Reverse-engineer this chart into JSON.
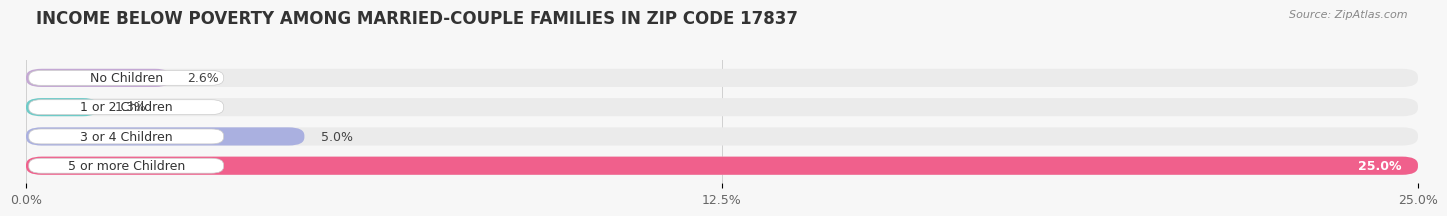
{
  "title": "INCOME BELOW POVERTY AMONG MARRIED-COUPLE FAMILIES IN ZIP CODE 17837",
  "source": "Source: ZipAtlas.com",
  "categories": [
    "No Children",
    "1 or 2 Children",
    "3 or 4 Children",
    "5 or more Children"
  ],
  "values": [
    2.6,
    1.3,
    5.0,
    25.0
  ],
  "bar_colors": [
    "#c4a8d4",
    "#6ecbc8",
    "#aab0e0",
    "#f0608c"
  ],
  "value_labels": [
    "2.6%",
    "1.3%",
    "5.0%",
    "25.0%"
  ],
  "value_inside": [
    false,
    false,
    false,
    true
  ],
  "xlim": [
    0,
    25.0
  ],
  "xticks": [
    0.0,
    12.5,
    25.0
  ],
  "xticklabels": [
    "0.0%",
    "12.5%",
    "25.0%"
  ],
  "background_color": "#f7f7f7",
  "bar_bg_color": "#ebebeb",
  "title_fontsize": 12,
  "label_fontsize": 9,
  "value_fontsize": 9,
  "source_fontsize": 8,
  "bar_height": 0.62,
  "bar_spacing": 1.0
}
